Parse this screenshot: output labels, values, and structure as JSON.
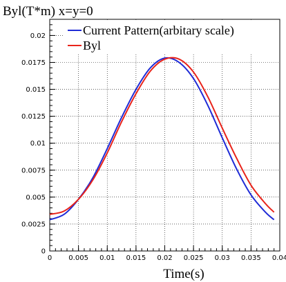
{
  "chart_data": {
    "type": "line",
    "title": "Byl(T*m)  x=y=0",
    "xlabel": "Time(s)",
    "ylabel": "",
    "xlim": [
      0,
      0.04
    ],
    "ylim": [
      0,
      0.0215
    ],
    "xticks": [
      "0",
      "0.005",
      "0.01",
      "0.015",
      "0.02",
      "0.025",
      "0.03",
      "0.035",
      "0.04"
    ],
    "yticks": [
      "0",
      "0.0025",
      "0.005",
      "0.0075",
      "0.01",
      "0.0125",
      "0.015",
      "0.0175",
      "0.02"
    ],
    "grid": true,
    "legend_position": "top-right",
    "x": [
      0,
      0.0025,
      0.005,
      0.0075,
      0.01,
      0.0125,
      0.015,
      0.0175,
      0.02,
      0.0225,
      0.025,
      0.0275,
      0.03,
      0.0325,
      0.035,
      0.0375,
      0.039
    ],
    "series": [
      {
        "name": "Current Pattern(arbitary scale)",
        "color": "#1f2bd6",
        "values": [
          0.0029,
          0.0034,
          0.0048,
          0.0068,
          0.0095,
          0.0124,
          0.015,
          0.017,
          0.0179,
          0.0175,
          0.016,
          0.0135,
          0.0105,
          0.0076,
          0.0052,
          0.0036,
          0.0029
        ]
      },
      {
        "name": "Byl",
        "color": "#e8231a",
        "values": [
          0.0034,
          0.0037,
          0.0048,
          0.0066,
          0.0091,
          0.012,
          0.0146,
          0.0167,
          0.0178,
          0.0178,
          0.0166,
          0.0143,
          0.0114,
          0.0086,
          0.0061,
          0.0044,
          0.0036
        ]
      }
    ]
  }
}
